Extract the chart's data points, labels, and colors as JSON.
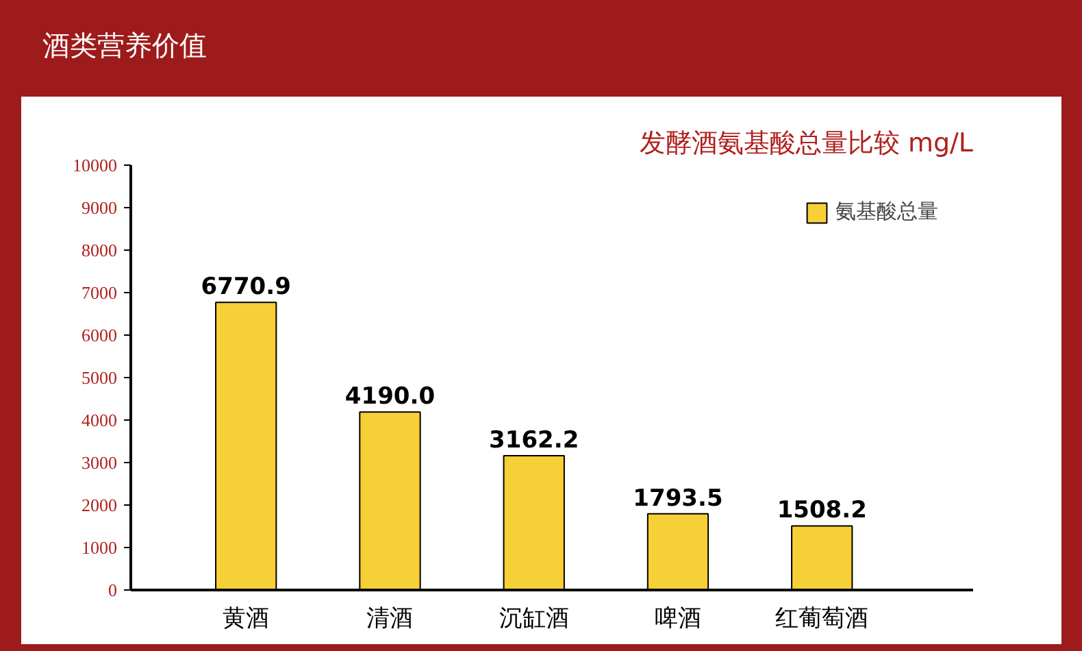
{
  "chart_data": {
    "type": "bar",
    "title": "酒类营养价值",
    "subtitle": "发酵酒氨基酸总量比较 mg/L",
    "categories": [
      "黄酒",
      "清酒",
      "沉缸酒",
      "啤酒",
      "红葡萄酒"
    ],
    "series": [
      {
        "name": "氨基酸总量",
        "color": "#f7d038",
        "values": [
          6770.9,
          4190.0,
          3162.2,
          1793.5,
          1508.2
        ],
        "value_labels": [
          "6770.9",
          "4190.0",
          "3162.2",
          "1793.5",
          "1508.2"
        ]
      }
    ],
    "ylim": [
      0,
      10000
    ],
    "yticks": [
      0,
      1000,
      2000,
      3000,
      4000,
      5000,
      6000,
      7000,
      8000,
      9000,
      10000
    ],
    "grid": false,
    "legend": "top right"
  }
}
